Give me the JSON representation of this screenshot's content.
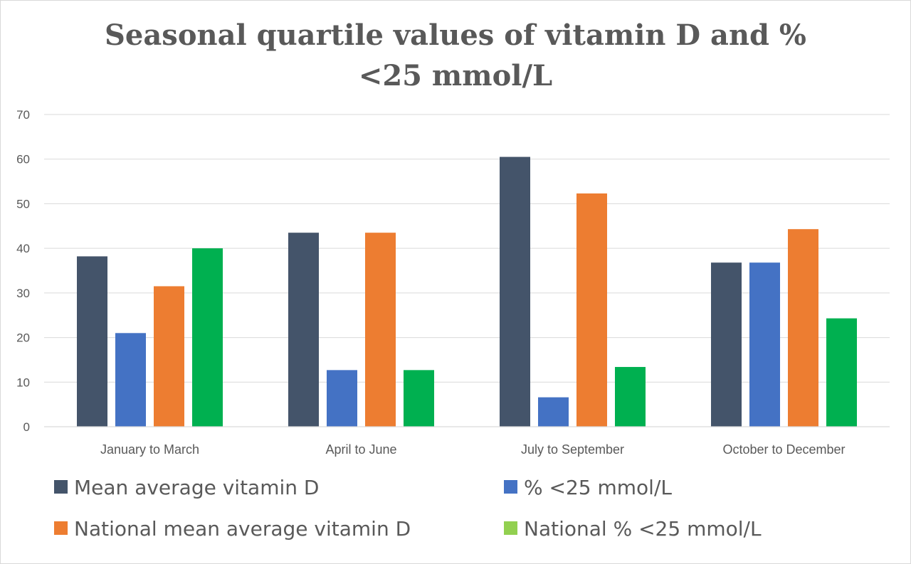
{
  "chart_data": {
    "type": "bar",
    "title": "Seasonal quartile values of vitamin D and %",
    "title_line2": "<25 mmol/L",
    "xlabel": "",
    "ylabel": "",
    "ylim": [
      0,
      70
    ],
    "yticks": [
      0,
      10,
      20,
      30,
      40,
      50,
      60,
      70
    ],
    "grid": true,
    "legend_position": "bottom",
    "categories": [
      "January to March",
      "April to June",
      "July to September",
      "October to December"
    ],
    "series": [
      {
        "name": "Mean average vitamin D",
        "color": "#44546a",
        "values": [
          38.2,
          43.5,
          60.5,
          36.8
        ]
      },
      {
        "name": "% <25 mmol/L",
        "color": "#4472c4",
        "values": [
          21.0,
          12.7,
          6.6,
          36.8
        ]
      },
      {
        "name": "National mean average vitamin D",
        "color": "#ed7d31",
        "values": [
          31.5,
          43.5,
          52.3,
          44.3
        ]
      },
      {
        "name": "National % <25 mmol/L",
        "color": "#00b050",
        "legend_color": "#92d050",
        "values": [
          40.0,
          12.7,
          13.4,
          24.3
        ]
      }
    ]
  }
}
